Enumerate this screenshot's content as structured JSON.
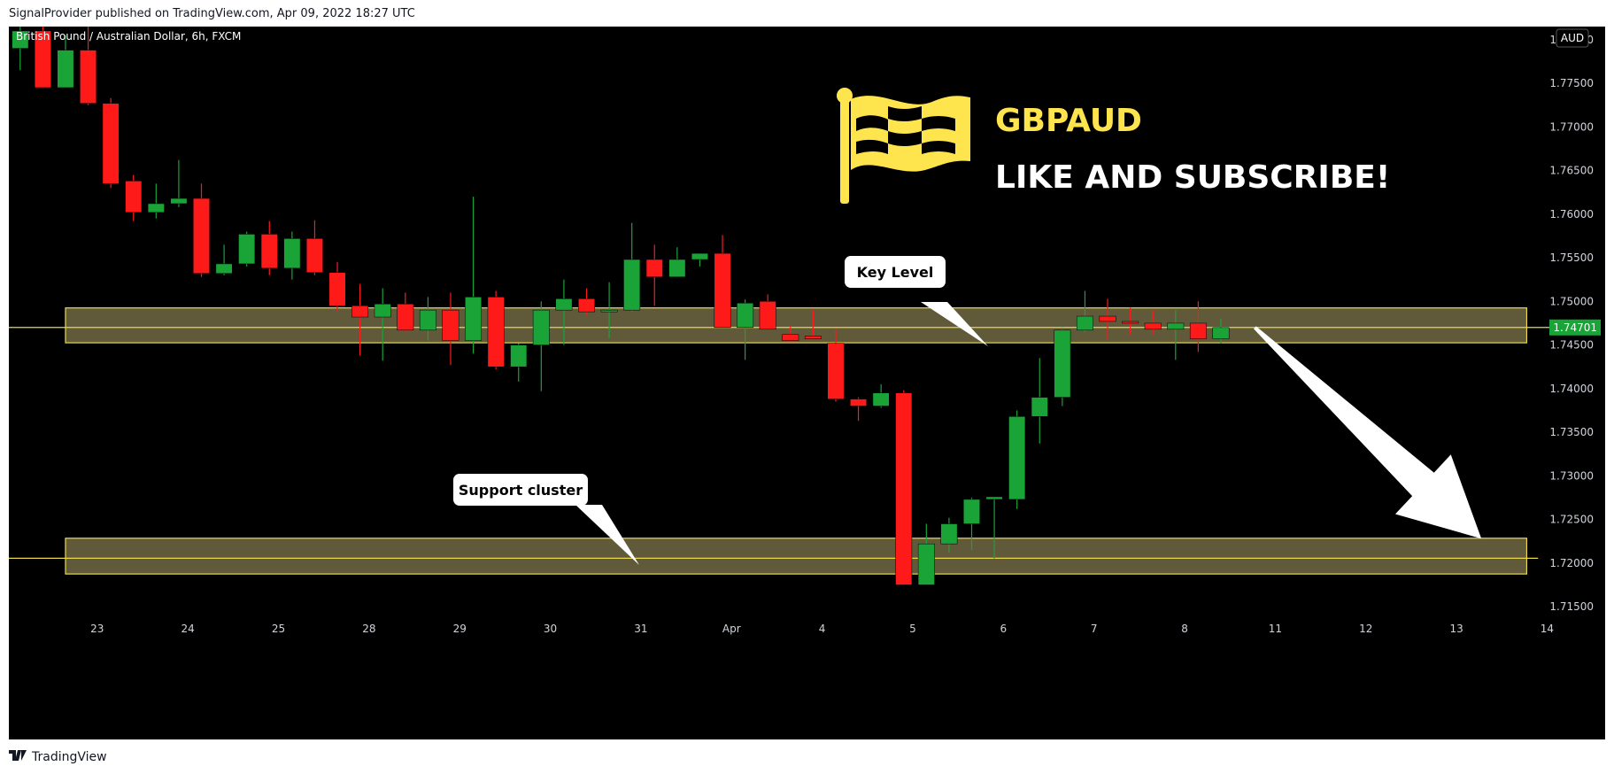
{
  "header": {
    "published_line": "SignalProvider published on TradingView.com, Apr 09, 2022 18:27 UTC"
  },
  "symbol_title": "British Pound / Australian Dollar, 6h, FXCM",
  "currency_badge": "AUD",
  "branding": {
    "ticker": "GBPAUD",
    "call_to_action": "LIKE AND SUBSCRIBE!"
  },
  "footer": {
    "brand": "TradingView"
  },
  "colors": {
    "background": "#000000",
    "bull": "#1aa337",
    "bear": "#ff1a1a",
    "zone_fill": "#6b6440",
    "zone_border": "#e8d84a",
    "level_line": "#e8d84a",
    "accent_yellow": "#ffe54d",
    "price_label_bg": "#1aa337"
  },
  "chart_data": {
    "type": "candlestick",
    "title": "British Pound / Australian Dollar, 6h, FXCM",
    "xlabel": "",
    "ylabel": "",
    "y_axis_side": "right",
    "ylim": [
      1.7145,
      1.7815
    ],
    "yticks": [
      1.715,
      1.72,
      1.725,
      1.73,
      1.735,
      1.74,
      1.745,
      1.75,
      1.755,
      1.76,
      1.765,
      1.77,
      1.775,
      1.78
    ],
    "ytick_labels": [
      "1.71500",
      "1.72000",
      "1.72500",
      "1.73000",
      "1.73500",
      "1.74000",
      "1.74500",
      "1.75000",
      "1.75500",
      "1.76000",
      "1.76500",
      "1.77000",
      "1.77500",
      "1.78000"
    ],
    "xlim": [
      -0.5,
      67.5
    ],
    "xticks": [
      {
        "label": "23",
        "bar": 3.4
      },
      {
        "label": "24",
        "bar": 7.4
      },
      {
        "label": "25",
        "bar": 11.4
      },
      {
        "label": "28",
        "bar": 15.4
      },
      {
        "label": "29",
        "bar": 19.4
      },
      {
        "label": "30",
        "bar": 23.4
      },
      {
        "label": "31",
        "bar": 27.4
      },
      {
        "label": "Apr",
        "bar": 31.4
      },
      {
        "label": "4",
        "bar": 35.4
      },
      {
        "label": "5",
        "bar": 39.4
      },
      {
        "label": "6",
        "bar": 43.4
      },
      {
        "label": "7",
        "bar": 47.4
      },
      {
        "label": "8",
        "bar": 51.4
      },
      {
        "label": "11",
        "bar": 55.4
      },
      {
        "label": "12",
        "bar": 59.4
      },
      {
        "label": "13",
        "bar": 63.4
      },
      {
        "label": "14",
        "bar": 67.4
      }
    ],
    "candles": [
      {
        "o": 1.779,
        "h": 1.7815,
        "l": 1.7765,
        "c": 1.781
      },
      {
        "o": 1.781,
        "h": 1.7815,
        "l": 1.7745,
        "c": 1.7745
      },
      {
        "o": 1.7745,
        "h": 1.7805,
        "l": 1.7745,
        "c": 1.7788
      },
      {
        "o": 1.7788,
        "h": 1.7815,
        "l": 1.7725,
        "c": 1.7727
      },
      {
        "o": 1.7727,
        "h": 1.7733,
        "l": 1.763,
        "c": 1.7635
      },
      {
        "o": 1.7638,
        "h": 1.7645,
        "l": 1.7592,
        "c": 1.7602
      },
      {
        "o": 1.7602,
        "h": 1.7635,
        "l": 1.7595,
        "c": 1.7612
      },
      {
        "o": 1.7612,
        "h": 1.7662,
        "l": 1.7608,
        "c": 1.7618
      },
      {
        "o": 1.7618,
        "h": 1.7635,
        "l": 1.7528,
        "c": 1.7532
      },
      {
        "o": 1.7532,
        "h": 1.7565,
        "l": 1.753,
        "c": 1.7543
      },
      {
        "o": 1.7543,
        "h": 1.758,
        "l": 1.754,
        "c": 1.7577
      },
      {
        "o": 1.7577,
        "h": 1.7592,
        "l": 1.753,
        "c": 1.7538
      },
      {
        "o": 1.7538,
        "h": 1.758,
        "l": 1.7525,
        "c": 1.7572
      },
      {
        "o": 1.7572,
        "h": 1.7593,
        "l": 1.753,
        "c": 1.7533
      },
      {
        "o": 1.7533,
        "h": 1.7545,
        "l": 1.7488,
        "c": 1.7495
      },
      {
        "o": 1.7495,
        "h": 1.752,
        "l": 1.7438,
        "c": 1.7482
      },
      {
        "o": 1.7482,
        "h": 1.7515,
        "l": 1.7432,
        "c": 1.7497
      },
      {
        "o": 1.7497,
        "h": 1.751,
        "l": 1.7465,
        "c": 1.7467
      },
      {
        "o": 1.7467,
        "h": 1.7505,
        "l": 1.7455,
        "c": 1.749
      },
      {
        "o": 1.749,
        "h": 1.751,
        "l": 1.7427,
        "c": 1.7455
      },
      {
        "o": 1.7455,
        "h": 1.762,
        "l": 1.744,
        "c": 1.7505
      },
      {
        "o": 1.7505,
        "h": 1.7512,
        "l": 1.7422,
        "c": 1.7425
      },
      {
        "o": 1.7425,
        "h": 1.7452,
        "l": 1.7408,
        "c": 1.745
      },
      {
        "o": 1.745,
        "h": 1.75,
        "l": 1.7397,
        "c": 1.749
      },
      {
        "o": 1.749,
        "h": 1.7525,
        "l": 1.745,
        "c": 1.7503
      },
      {
        "o": 1.7503,
        "h": 1.7515,
        "l": 1.7485,
        "c": 1.7488
      },
      {
        "o": 1.7488,
        "h": 1.7522,
        "l": 1.7458,
        "c": 1.749
      },
      {
        "o": 1.749,
        "h": 1.759,
        "l": 1.7488,
        "c": 1.7548
      },
      {
        "o": 1.7548,
        "h": 1.7565,
        "l": 1.7495,
        "c": 1.7528
      },
      {
        "o": 1.7528,
        "h": 1.7562,
        "l": 1.7528,
        "c": 1.7548
      },
      {
        "o": 1.7548,
        "h": 1.7555,
        "l": 1.754,
        "c": 1.7555
      },
      {
        "o": 1.7555,
        "h": 1.7576,
        "l": 1.747,
        "c": 1.747
      },
      {
        "o": 1.747,
        "h": 1.7502,
        "l": 1.7433,
        "c": 1.7498
      },
      {
        "o": 1.75,
        "h": 1.7508,
        "l": 1.7468,
        "c": 1.7468
      },
      {
        "o": 1.7462,
        "h": 1.7473,
        "l": 1.7453,
        "c": 1.7455
      },
      {
        "o": 1.746,
        "h": 1.749,
        "l": 1.7457,
        "c": 1.7457
      },
      {
        "o": 1.7452,
        "h": 1.7468,
        "l": 1.7385,
        "c": 1.7388
      },
      {
        "o": 1.7388,
        "h": 1.739,
        "l": 1.7363,
        "c": 1.738
      },
      {
        "o": 1.738,
        "h": 1.7405,
        "l": 1.7378,
        "c": 1.7395
      },
      {
        "o": 1.7395,
        "h": 1.7398,
        "l": 1.7175,
        "c": 1.7175
      },
      {
        "o": 1.7175,
        "h": 1.7245,
        "l": 1.7175,
        "c": 1.7222
      },
      {
        "o": 1.7222,
        "h": 1.7252,
        "l": 1.7212,
        "c": 1.7245
      },
      {
        "o": 1.7245,
        "h": 1.7275,
        "l": 1.7215,
        "c": 1.7273
      },
      {
        "o": 1.7273,
        "h": 1.7276,
        "l": 1.7205,
        "c": 1.7276
      },
      {
        "o": 1.7273,
        "h": 1.7375,
        "l": 1.7262,
        "c": 1.7368
      },
      {
        "o": 1.7368,
        "h": 1.7435,
        "l": 1.7337,
        "c": 1.739
      },
      {
        "o": 1.739,
        "h": 1.747,
        "l": 1.738,
        "c": 1.7467
      },
      {
        "o": 1.7467,
        "h": 1.7512,
        "l": 1.7465,
        "c": 1.7483
      },
      {
        "o": 1.7483,
        "h": 1.7503,
        "l": 1.7457,
        "c": 1.7477
      },
      {
        "o": 1.7477,
        "h": 1.7493,
        "l": 1.7462,
        "c": 1.7475
      },
      {
        "o": 1.7475,
        "h": 1.749,
        "l": 1.7462,
        "c": 1.7468
      },
      {
        "o": 1.7468,
        "h": 1.749,
        "l": 1.7433,
        "c": 1.7475
      },
      {
        "o": 1.7475,
        "h": 1.75,
        "l": 1.7442,
        "c": 1.7457
      },
      {
        "o": 1.7457,
        "h": 1.748,
        "l": 1.7452,
        "c": 1.747
      }
    ],
    "current_price": {
      "value": 1.74701,
      "label": "1.74701"
    },
    "horizontal_lines": [
      1.74701,
      1.72055
    ],
    "zones": [
      {
        "name": "key-level-zone",
        "from": 1.74525,
        "to": 1.74925,
        "x_start": 2.0,
        "x_end": 66.5
      },
      {
        "name": "support-cluster-zone",
        "from": 1.71875,
        "to": 1.72285,
        "x_start": 2.0,
        "x_end": 66.5
      }
    ],
    "callouts": [
      {
        "name": "key-level-callout",
        "text": "Key Level"
      },
      {
        "name": "support-cluster-callout",
        "text": "Support cluster"
      }
    ],
    "projection_arrow": {
      "from_bar": 54.5,
      "from_price": 1.747,
      "to_bar": 64.5,
      "to_price": 1.7228
    }
  }
}
